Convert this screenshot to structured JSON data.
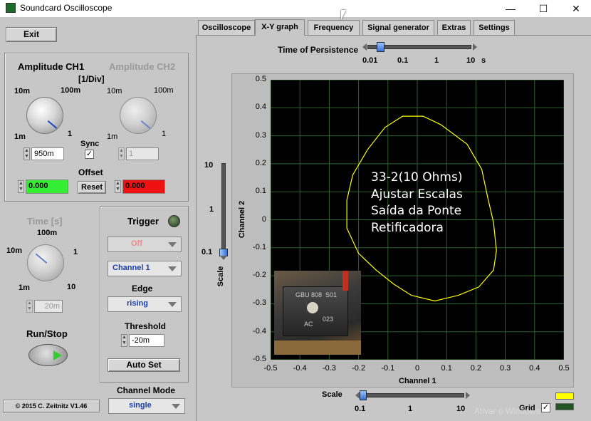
{
  "window": {
    "title": "Soundcard Oscilloscope",
    "min": "—",
    "max": "☐",
    "close": "✕"
  },
  "exit_label": "Exit",
  "ch1": {
    "label": "Amplitude CH1",
    "unit": "[1/Div]",
    "ticks": [
      "10m",
      "100m",
      "1m",
      "1"
    ],
    "value": "950m",
    "offset_value": "0.000"
  },
  "ch2": {
    "label": "Amplitude CH2",
    "ticks": [
      "10m",
      "100m",
      "1m",
      "1"
    ],
    "value": "1",
    "offset_value": "0.000"
  },
  "sync_label": "Sync",
  "offset_label": "Offset",
  "reset_label": "Reset",
  "time": {
    "label": "Time [s]",
    "ticks": [
      "100m",
      "10m",
      "1",
      "1m",
      "10"
    ],
    "value": "20m"
  },
  "run_stop_label": "Run/Stop",
  "copyright": "© 2015  C. Zeitnitz V1.46",
  "trigger": {
    "label": "Trigger",
    "mode": "Off",
    "channel": "Channel 1",
    "edge_label": "Edge",
    "edge": "rising",
    "threshold_label": "Threshold",
    "threshold": "-20m",
    "autoset_label": "Auto Set"
  },
  "channel_mode": {
    "label": "Channel Mode",
    "value": "single"
  },
  "tabs": [
    "Oscilloscope",
    "X-Y graph",
    "Frequency",
    "Signal generator",
    "Extras",
    "Settings"
  ],
  "active_tab": 1,
  "persistence": {
    "label": "Time of Persistence",
    "ticks": [
      "0.01",
      "0.1",
      "1",
      "10"
    ],
    "unit": "s",
    "value": 0.02
  },
  "graph": {
    "xlabel": "Channel 1",
    "ylabel": "Channel 2",
    "xticks": [
      "-0.5",
      "-0.4",
      "-0.3",
      "-0.2",
      "-0.1",
      "0",
      "0.1",
      "0.2",
      "0.3",
      "0.4",
      "0.5"
    ],
    "yticks": [
      "0.5",
      "0.4",
      "0.3",
      "0.2",
      "0.1",
      "0",
      "-0.1",
      "-0.2",
      "-0.3",
      "-0.4",
      "-0.5"
    ],
    "annotation": [
      "33-2(10 Ohms)",
      "Ajustar Escalas",
      "Saída da Ponte",
      "Retificadora"
    ],
    "photo_labels": [
      "GBU 808",
      "S01",
      "AC",
      "023"
    ],
    "colors": {
      "background": "#000000",
      "grid": "#2f5f2f",
      "trace": "#ffff00"
    }
  },
  "scale_v": {
    "label": "Scale",
    "ticks": [
      "10",
      "1",
      "0.1"
    ],
    "value": 0.1
  },
  "scale_h": {
    "label": "Scale",
    "ticks": [
      "0.1",
      "1",
      "10"
    ],
    "value": 0.1
  },
  "grid_label": "Grid",
  "grid_on": true,
  "watermark": "Ativar o Windows"
}
